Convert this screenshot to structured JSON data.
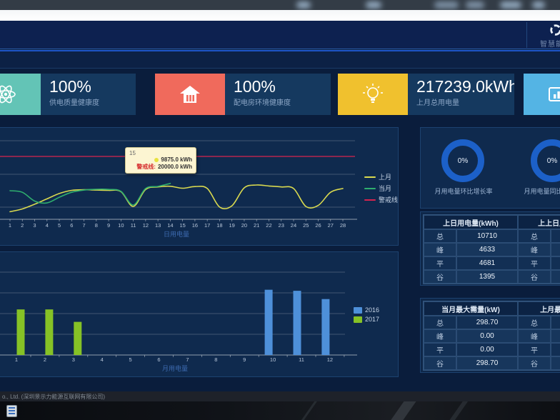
{
  "header": {
    "brand_label": "智慧能管"
  },
  "kpi_cards": [
    {
      "icon": "atom-icon",
      "color": "#63c4b6",
      "value": "100%",
      "label": "供电质量健康度"
    },
    {
      "icon": "house-icon",
      "color": "#f06a5c",
      "value": "100%",
      "label": "配电房环境健康度"
    },
    {
      "icon": "bulb-icon",
      "color": "#f0c12e",
      "value": "217239.0kWh",
      "label": "上月总用电量"
    },
    {
      "icon": "bar-chart-icon",
      "color": "#54b4e4",
      "value": "",
      "label": ""
    }
  ],
  "gauges": [
    {
      "value": "0%",
      "label": "月用电量环比增长率"
    },
    {
      "value": "0%",
      "label": "月用电量同比增长率"
    }
  ],
  "tables": [
    {
      "left": {
        "title": "上日用电量(kWh)",
        "rows": [
          {
            "label": "总",
            "value": "10710"
          },
          {
            "label": "峰",
            "value": "4633"
          },
          {
            "label": "平",
            "value": "4681"
          },
          {
            "label": "谷",
            "value": "1395"
          }
        ]
      },
      "right": {
        "title": "上上日用电量(kWh)",
        "rows": [
          {
            "label": "总",
            "value": ""
          },
          {
            "label": "峰",
            "value": ""
          },
          {
            "label": "平",
            "value": ""
          },
          {
            "label": "谷",
            "value": ""
          }
        ]
      }
    },
    {
      "left": {
        "title": "当月最大需量(kW)",
        "rows": [
          {
            "label": "总",
            "value": "298.70"
          },
          {
            "label": "峰",
            "value": "0.00"
          },
          {
            "label": "平",
            "value": "0.00"
          },
          {
            "label": "谷",
            "value": "298.70"
          }
        ]
      },
      "right": {
        "title": "上月最大需量(kW)",
        "rows": [
          {
            "label": "总",
            "value": ""
          },
          {
            "label": "峰",
            "value": ""
          },
          {
            "label": "平",
            "value": ""
          },
          {
            "label": "谷",
            "value": ""
          }
        ]
      }
    }
  ],
  "chart_data": [
    {
      "type": "line",
      "title": "",
      "xlabel": "日用电量",
      "ylabel": "",
      "x": [
        1,
        2,
        3,
        4,
        5,
        6,
        7,
        8,
        9,
        10,
        11,
        12,
        13,
        14,
        15,
        16,
        17,
        18,
        19,
        20,
        21,
        22,
        23,
        24,
        25,
        26,
        27,
        28
      ],
      "ylim": [
        0,
        27500
      ],
      "grid": true,
      "legend_position": "right",
      "series": [
        {
          "name": "上月",
          "color": "#d9d94f",
          "values": [
            2400,
            3300,
            4800,
            6500,
            8200,
            9200,
            9400,
            9300,
            9200,
            8800,
            4100,
            9500,
            10300,
            10500,
            9875,
            10400,
            9800,
            3900,
            4300,
            10000,
            10900,
            10600,
            10300,
            9800,
            4100,
            4400,
            8600,
            9800
          ]
        },
        {
          "name": "当月",
          "color": "#2fae6e",
          "values": [
            9100,
            8600,
            5800,
            5200,
            7000,
            8600,
            9300,
            9550,
            9500,
            8900,
            4550,
            9800,
            10450,
            11400
          ]
        },
        {
          "name": "警戒线",
          "color": "#d6244e",
          "type": "threshold",
          "value": 20000
        }
      ],
      "tooltip": {
        "title": "15",
        "rows": [
          {
            "marker_color": "#e8e23f",
            "label": "",
            "value": "9875.0 kWh"
          },
          {
            "marker_color": "",
            "label": "警戒线:",
            "value": "20000.0 kWh"
          }
        ]
      }
    },
    {
      "type": "bar",
      "title": "",
      "xlabel": "月用电量",
      "ylabel": "",
      "categories": [
        "1",
        "2",
        "3",
        "4",
        "5",
        "6",
        "7",
        "8",
        "9",
        "10",
        "11",
        "12"
      ],
      "ylim": [
        0,
        50000
      ],
      "grid": true,
      "legend_position": "right",
      "series": [
        {
          "name": "2016",
          "color": "#4e90d9",
          "values": [
            null,
            null,
            null,
            null,
            null,
            null,
            null,
            null,
            null,
            31500,
            31000,
            27000
          ]
        },
        {
          "name": "2017",
          "color": "#86c226",
          "values": [
            22000,
            22000,
            16000,
            null,
            null,
            null,
            null,
            null,
            null,
            null,
            null,
            null
          ]
        }
      ]
    }
  ],
  "footer": {
    "text": "o., Ltd. (深圳景示力能源互联网有限公司)"
  }
}
